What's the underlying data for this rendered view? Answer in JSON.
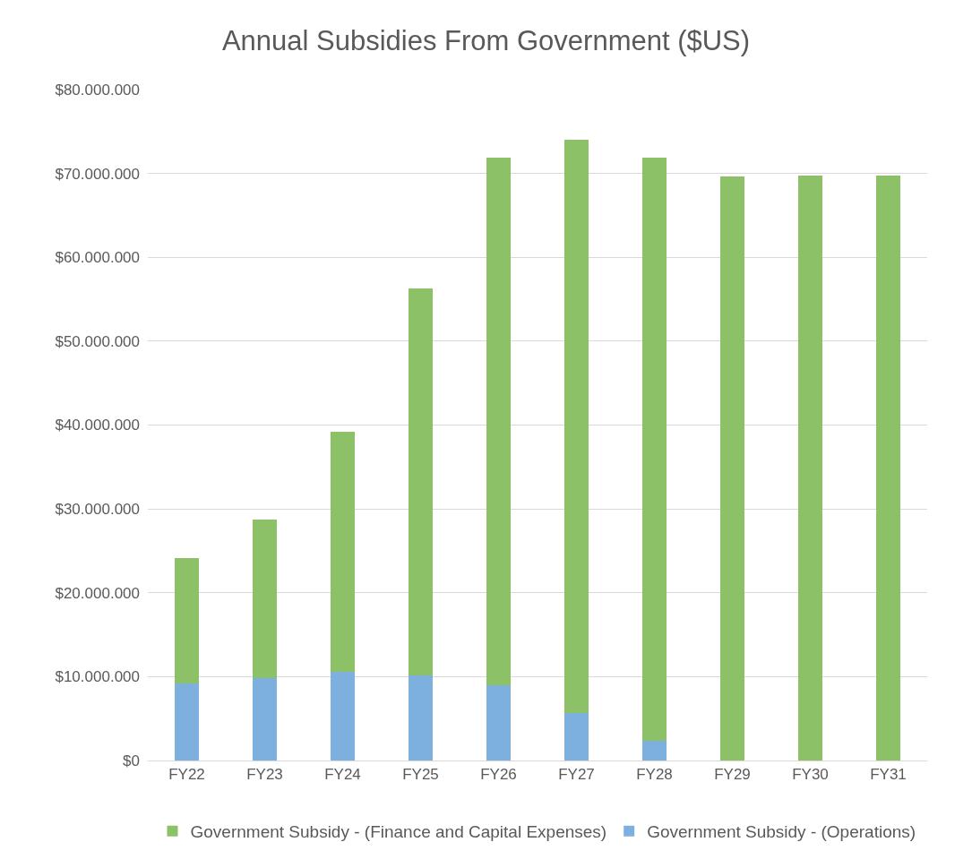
{
  "chart_data": {
    "type": "bar",
    "title": "Annual Subsidies From Government ($US)",
    "stacked": true,
    "categories": [
      "FY22",
      "FY23",
      "FY24",
      "FY25",
      "FY26",
      "FY27",
      "FY28",
      "FY29",
      "FY30",
      "FY31"
    ],
    "series": [
      {
        "name": "Government Subsidy - (Operations)",
        "color": "#7eb0df",
        "values": [
          9200000,
          9800000,
          10600000,
          10100000,
          9000000,
          5700000,
          2400000,
          0,
          0,
          0
        ]
      },
      {
        "name": "Government Subsidy - (Finance and Capital Expenses)",
        "color": "#8cc168",
        "values": [
          14900000,
          18900000,
          28600000,
          46200000,
          62900000,
          68300000,
          69500000,
          69600000,
          69700000,
          69800000
        ]
      }
    ],
    "ylim": [
      0,
      80000000
    ],
    "yticks": [
      {
        "value": 0,
        "label": "$0"
      },
      {
        "value": 10000000,
        "label": "$10.000.000"
      },
      {
        "value": 20000000,
        "label": "$20.000.000"
      },
      {
        "value": 30000000,
        "label": "$30.000.000"
      },
      {
        "value": 40000000,
        "label": "$40.000.000"
      },
      {
        "value": 50000000,
        "label": "$50.000.000"
      },
      {
        "value": 60000000,
        "label": "$60.000.000"
      },
      {
        "value": 70000000,
        "label": "$70.000.000"
      },
      {
        "value": 80000000,
        "label": "$80.000.000"
      }
    ],
    "grid": "y",
    "legend": "bottom"
  }
}
